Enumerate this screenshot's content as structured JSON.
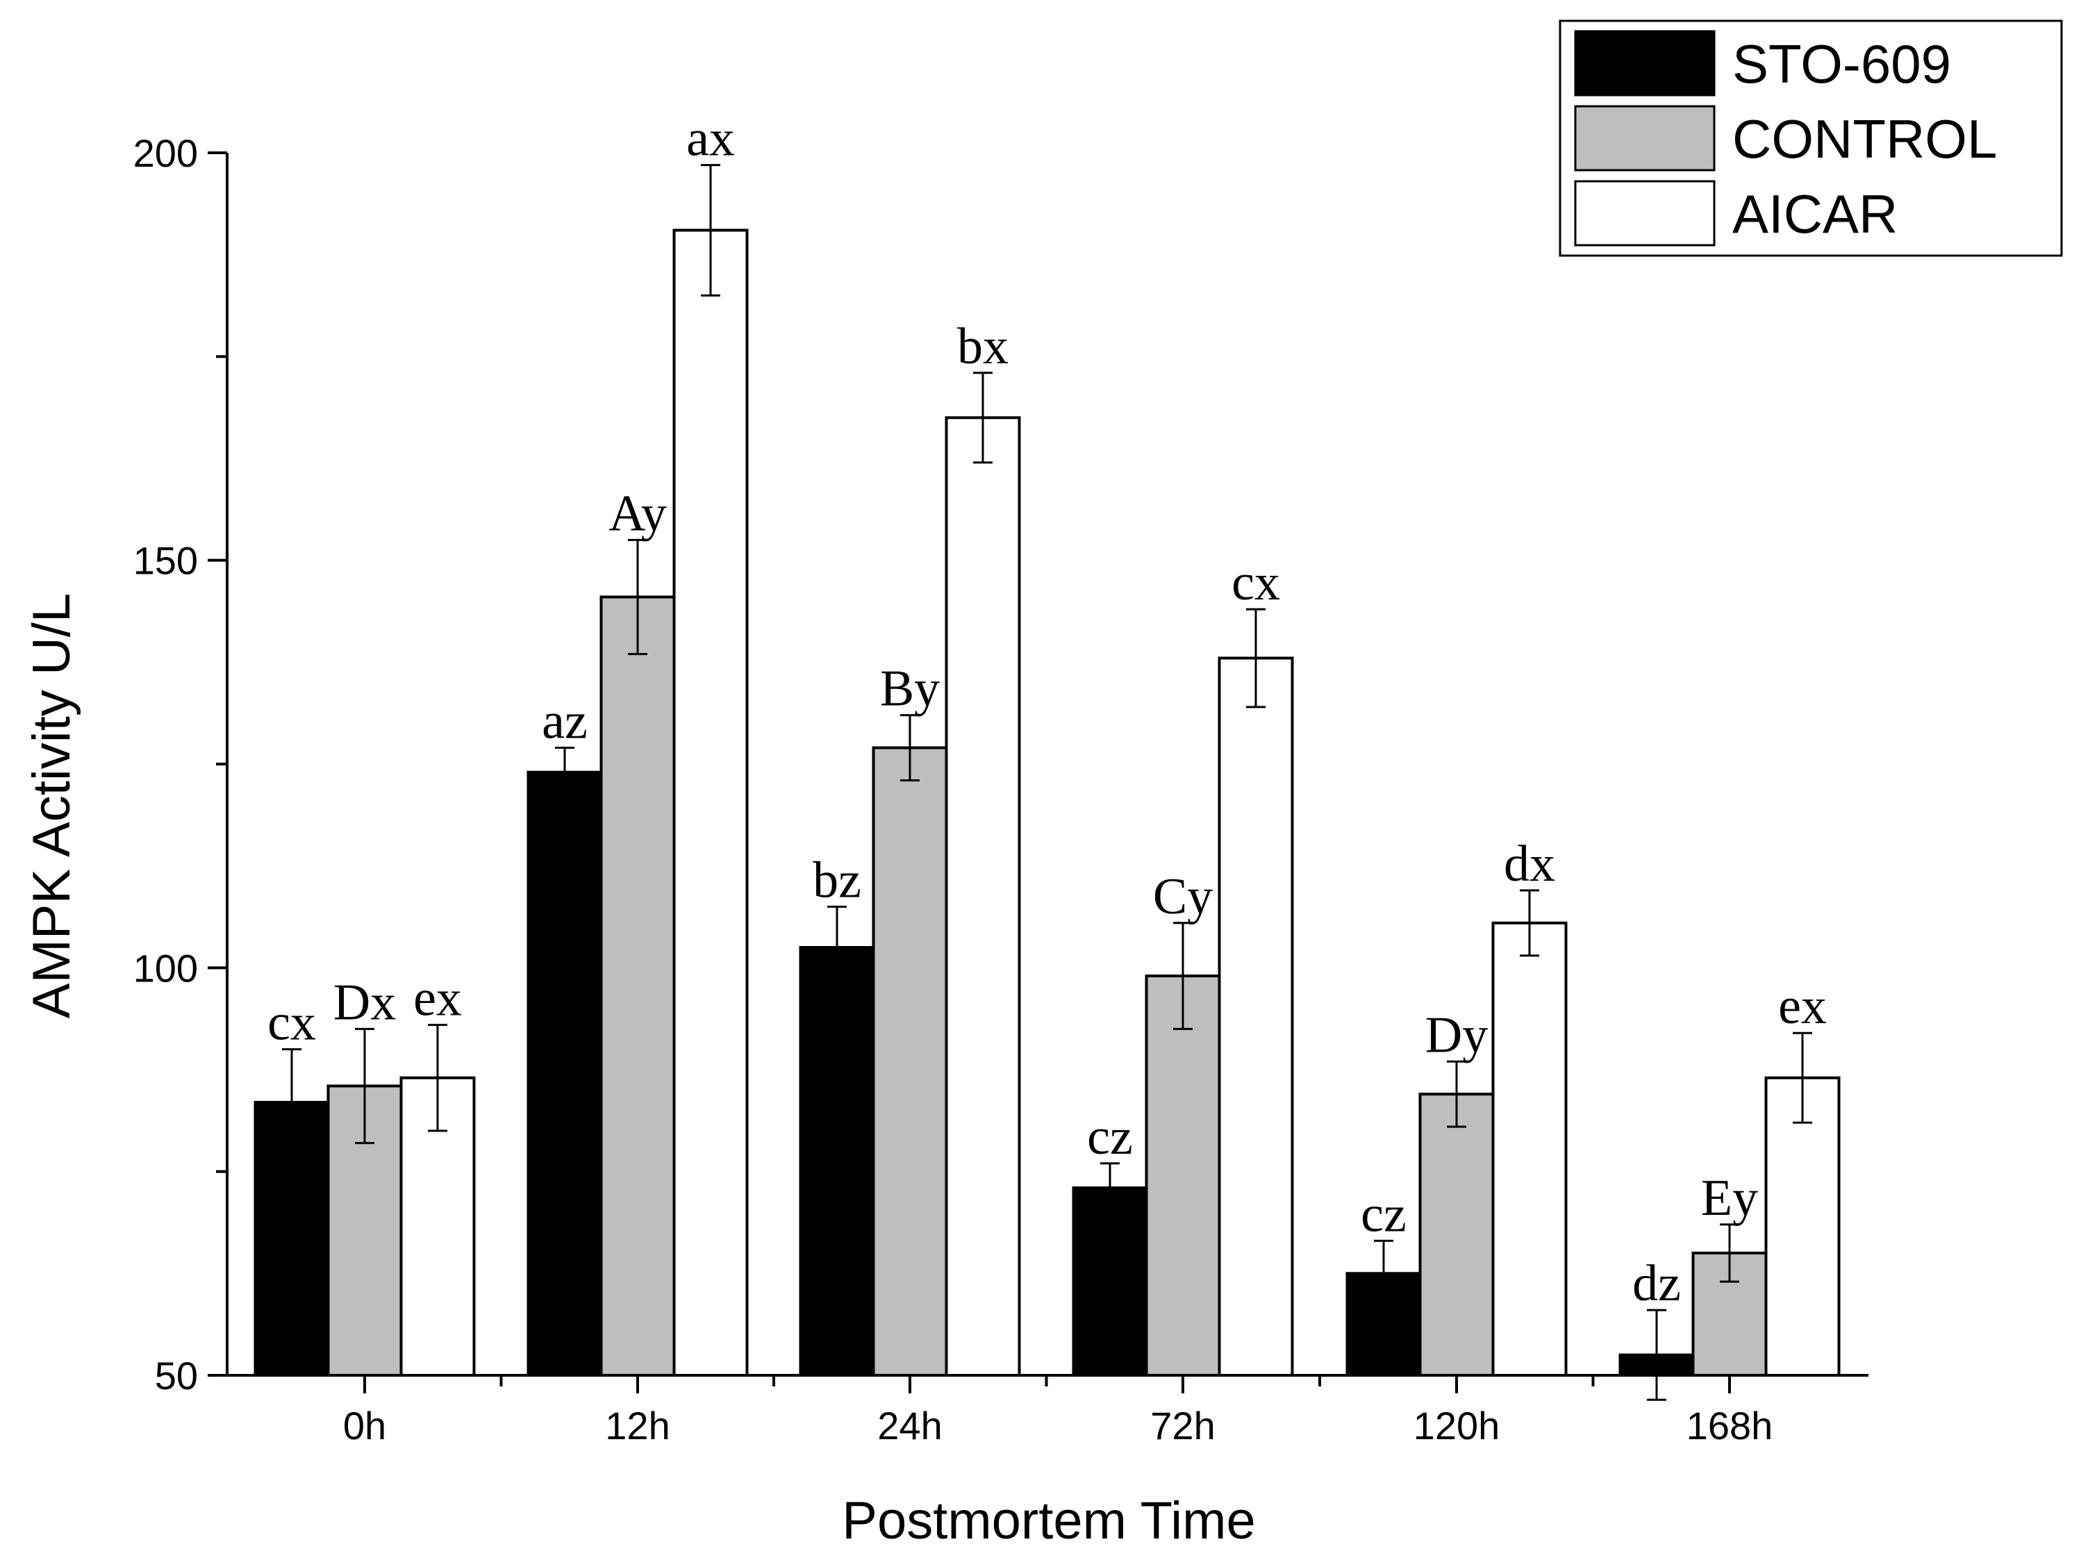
{
  "chart_data": {
    "type": "bar",
    "title": "",
    "xlabel": "Postmortem Time",
    "ylabel": "AMPK Activity U/L",
    "ylim": [
      50,
      200
    ],
    "yticks": [
      50,
      100,
      150,
      200
    ],
    "categories": [
      "0h",
      "12h",
      "24h",
      "72h",
      "120h",
      "168h"
    ],
    "legend_position": "top-right",
    "series": [
      {
        "name": "STO-609",
        "color": "#000000",
        "values": [
          83.5,
          124,
          102.5,
          73,
          62.5,
          52.5
        ],
        "errors": [
          6.5,
          3,
          5,
          3,
          4,
          5.5
        ],
        "labels": [
          "cx",
          "az",
          "bz",
          "cz",
          "cz",
          "dz"
        ]
      },
      {
        "name": "CONTROL",
        "color": "#bebebe",
        "values": [
          85.5,
          145.5,
          127,
          99,
          84.5,
          65
        ],
        "errors": [
          7,
          7,
          4,
          6.5,
          4,
          3.5
        ],
        "labels": [
          "Dx",
          "Ay",
          "By",
          "Cy",
          "Dy",
          "Ey"
        ]
      },
      {
        "name": "AICAR",
        "color": "#ffffff",
        "values": [
          86.5,
          190.5,
          167.5,
          138,
          105.5,
          86.5
        ],
        "errors": [
          6.5,
          8,
          5.5,
          6,
          4,
          5.5
        ],
        "labels": [
          "ex",
          "ax",
          "bx",
          "cx",
          "dx",
          "ex"
        ]
      }
    ]
  }
}
